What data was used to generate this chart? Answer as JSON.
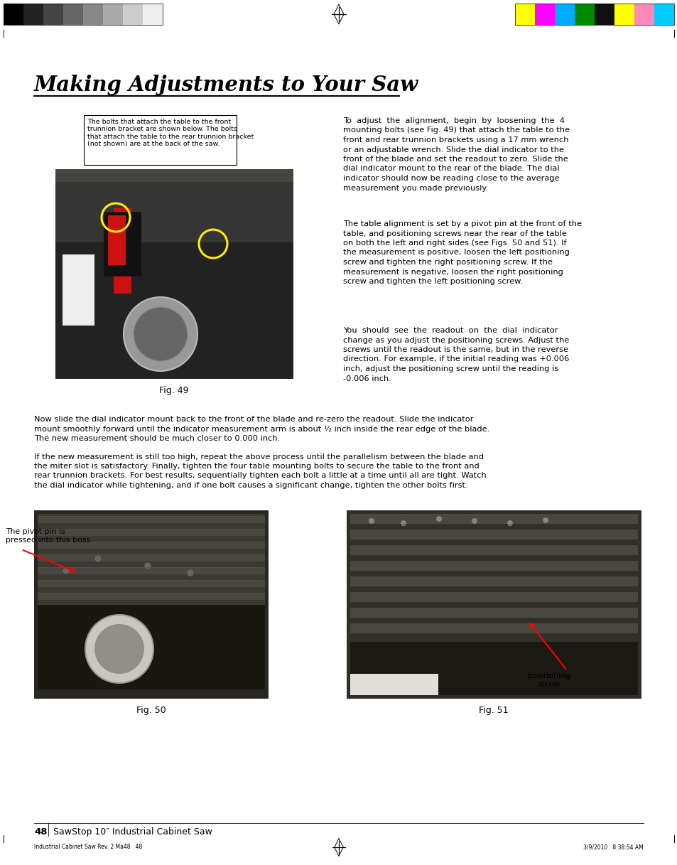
{
  "title": "Making Adjustments to Your Saw",
  "bg_color": "#ffffff",
  "page_number": "48",
  "page_footer_left": "SawStop 10″ Industrial Cabinet Saw",
  "page_footer_small": "Industrial Cabinet Saw Rev. 2 Ma48   48",
  "page_footer_date": "3/9/2010   8:38:54 AM",
  "note_box_text": "The bolts that attach the table to the front\ntrunnion bracket are shown below. The bolts\nthat attach the table to the rear trunnion bracket\n(not shown) are at the back of the saw.",
  "fig49_caption": "Fig. 49",
  "fig50_caption": "Fig. 50",
  "fig51_caption": "Fig. 51",
  "pivot_label": "The pivot pin is\npressed into this boss",
  "positioning_label": "positioning\nscrew",
  "para1_lines": [
    "To  adjust  the  alignment,  begin  by  loosening  the  4",
    "mounting bolts (see Fig. 49) that attach the table to the",
    "front and rear trunnion brackets using a 17 mm wrench",
    "or an adjustable wrench. Slide the dial indicator to the",
    "front of the blade and set the readout to zero. Slide the",
    "dial indicator mount to the rear of the blade. The dial",
    "indicator should now be reading close to the average",
    "measurement you made previously."
  ],
  "para2_lines": [
    "The table alignment is set by a pivot pin at the front of the",
    "table, and positioning screws near the rear of the table",
    "on both the left and right sides (see Figs. 50 and 51). If",
    "the measurement is positive, loosen the left positioning",
    "screw and tighten the right positioning screw. If the",
    "measurement is negative, loosen the right positioning",
    "screw and tighten the left positioning screw."
  ],
  "para3_lines": [
    "You  should  see  the  readout  on  the  dial  indicator",
    "change as you adjust the positioning screws. Adjust the",
    "screws until the readout is the same, but in the reverse",
    "direction. For example, if the initial reading was +0.006",
    "inch, adjust the positioning screw until the reading is",
    "-0.006 inch."
  ],
  "para4_lines": [
    "Now slide the dial indicator mount back to the front of the blade and re-zero the readout. Slide the indicator",
    "mount smoothly forward until the indicator measurement arm is about ½ inch inside the rear edge of the blade.",
    "The new measurement should be much closer to 0.000 inch."
  ],
  "para5_lines": [
    "If the new measurement is still too high, repeat the above process until the parallelism between the blade and",
    "the miter slot is satisfactory. Finally, tighten the four table mounting bolts to secure the table to the front and",
    "rear trunnion brackets. For best results, sequentially tighten each bolt a little at a time until all are tight. Watch",
    "the dial indicator while tightening, and if one bolt causes a significant change, tighten the other bolts first."
  ],
  "color_blocks_left": [
    "#000000",
    "#222222",
    "#444444",
    "#666666",
    "#888888",
    "#aaaaaa",
    "#cccccc",
    "#eeeeee"
  ],
  "color_blocks_right": [
    "#ffff00",
    "#ff00ff",
    "#00aaff",
    "#008800",
    "#111111",
    "#ffff00",
    "#ff88bb",
    "#00ccff"
  ]
}
